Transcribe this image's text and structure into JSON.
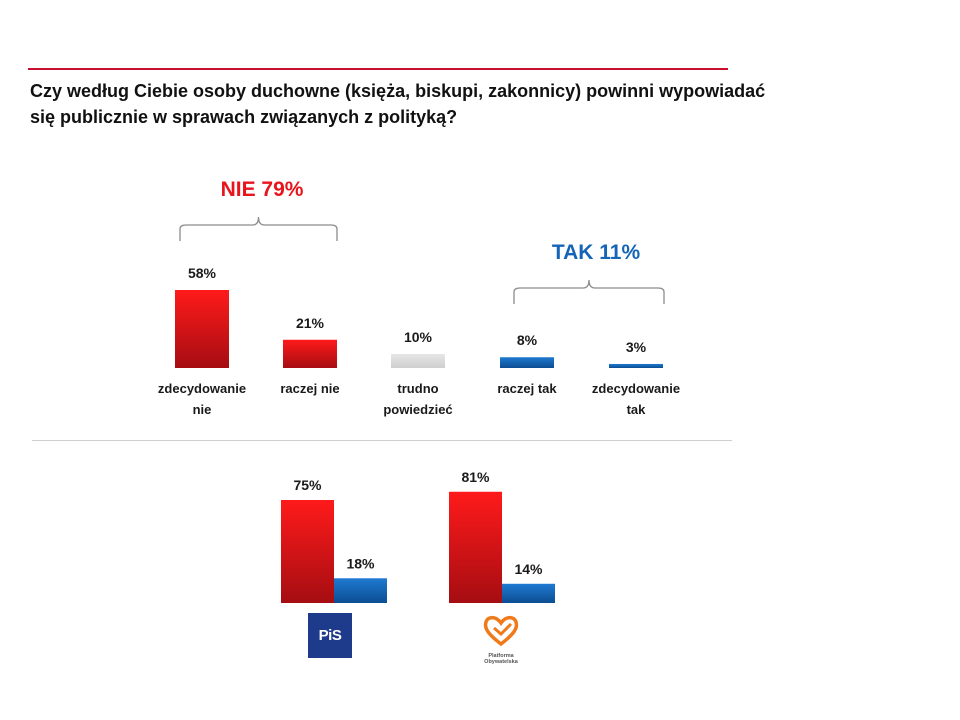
{
  "question": {
    "line1": "Czy według Ciebie osoby duchowne (księża, biskupi, zakonnicy) powinni wypowiadać",
    "line2": "się publicznie  w sprawach związanych z polityką?"
  },
  "colors": {
    "nie": "#e8141b",
    "tak": "#1465b8",
    "neutral": "#d9d9d9",
    "accent_line": "#c8102e"
  },
  "chart_data": [
    {
      "type": "bar",
      "categories": [
        "zdecydowanie\nnie",
        "raczej nie",
        "trudno\npowiedzieć",
        "raczej tak",
        "zdecydowanie\ntak"
      ],
      "values": [
        58,
        21,
        10,
        8,
        3
      ],
      "value_labels": [
        "58%",
        "21%",
        "10%",
        "8%",
        "3%"
      ],
      "groups": [
        {
          "label": "NIE 79%",
          "members": [
            0,
            1
          ],
          "color": "#e8141b"
        },
        {
          "label": "TAK 11%",
          "members": [
            3,
            4
          ],
          "color": "#1465b8"
        }
      ]
    },
    {
      "type": "bar",
      "categories": [
        "PiS",
        "Platforma Obywatelska"
      ],
      "series": [
        {
          "values": [
            75,
            81
          ],
          "value_labels": [
            "75%",
            "81%"
          ],
          "color": "#e8141b"
        },
        {
          "values": [
            18,
            14
          ],
          "value_labels": [
            "18%",
            "14%"
          ],
          "color": "#1465b8"
        }
      ]
    }
  ],
  "logos": {
    "pis": "PiS",
    "po": "Platforma Obywatelska"
  }
}
